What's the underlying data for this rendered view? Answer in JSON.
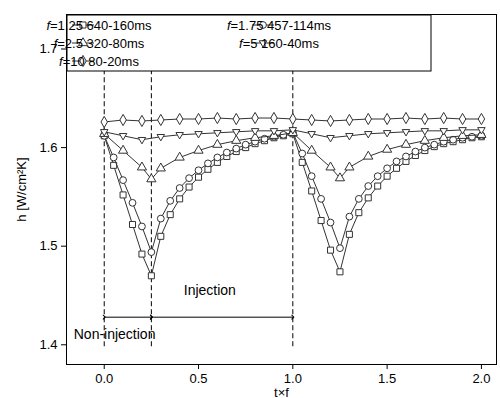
{
  "chart_data": {
    "type": "line",
    "x_label": "t×f",
    "y_label": "h [W/cm²K]",
    "xlim": [
      -0.2,
      2.08
    ],
    "ylim": [
      1.38,
      1.735
    ],
    "xticks": [
      {
        "value": 0,
        "label": "0.0"
      },
      0.5,
      {
        "value": 1,
        "label": "1.0"
      },
      1.5,
      {
        "value": 2,
        "label": "2.0"
      }
    ],
    "yticks": [
      1.4,
      1.5,
      1.6,
      1.7
    ],
    "grid": false,
    "legend": "upper left",
    "series": [
      {
        "name": "f=1.25 640-160ms",
        "color": "#333333",
        "marker": "square",
        "x": [
          0,
          0.05,
          0.1,
          0.15,
          0.2,
          0.25,
          0.3,
          0.35,
          0.4,
          0.45,
          0.5,
          0.55,
          0.6,
          0.65,
          0.7,
          0.75,
          0.8,
          0.85,
          0.9,
          0.95,
          1.0,
          1.05,
          1.1,
          1.15,
          1.2,
          1.25,
          1.3,
          1.35,
          1.4,
          1.45,
          1.5,
          1.55,
          1.6,
          1.65,
          1.7,
          1.75,
          1.8,
          1.85,
          1.9,
          1.95,
          2.0
        ],
        "values": [
          1.612,
          1.582,
          1.552,
          1.522,
          1.492,
          1.47,
          1.51,
          1.532,
          1.548,
          1.56,
          1.57,
          1.578,
          1.585,
          1.591,
          1.596,
          1.6,
          1.604,
          1.607,
          1.61,
          1.612,
          1.614,
          1.585,
          1.556,
          1.526,
          1.496,
          1.474,
          1.512,
          1.534,
          1.549,
          1.561,
          1.571,
          1.579,
          1.586,
          1.592,
          1.597,
          1.601,
          1.604,
          1.606,
          1.608,
          1.61,
          1.611
        ]
      },
      {
        "name": "f=1.75 457-114ms",
        "color": "#333333",
        "marker": "circle",
        "x": [
          0,
          0.05,
          0.1,
          0.15,
          0.2,
          0.25,
          0.3,
          0.35,
          0.4,
          0.45,
          0.5,
          0.55,
          0.6,
          0.65,
          0.7,
          0.75,
          0.8,
          0.85,
          0.9,
          0.95,
          1.0,
          1.05,
          1.1,
          1.15,
          1.2,
          1.25,
          1.3,
          1.35,
          1.4,
          1.45,
          1.5,
          1.55,
          1.6,
          1.65,
          1.7,
          1.75,
          1.8,
          1.85,
          1.9,
          1.95,
          2.0
        ],
        "values": [
          1.612,
          1.59,
          1.567,
          1.544,
          1.52,
          1.494,
          1.528,
          1.546,
          1.559,
          1.569,
          1.577,
          1.584,
          1.59,
          1.595,
          1.599,
          1.603,
          1.606,
          1.609,
          1.611,
          1.613,
          1.615,
          1.594,
          1.571,
          1.548,
          1.524,
          1.498,
          1.53,
          1.548,
          1.561,
          1.571,
          1.579,
          1.586,
          1.591,
          1.596,
          1.6,
          1.603,
          1.606,
          1.608,
          1.61,
          1.611,
          1.612
        ]
      },
      {
        "name": "f=2.5 320-80ms",
        "color": "#333333",
        "marker": "triangle",
        "x": [
          0,
          0.1,
          0.2,
          0.25,
          0.3,
          0.4,
          0.5,
          0.6,
          0.7,
          0.8,
          0.9,
          1.0,
          1.1,
          1.2,
          1.25,
          1.3,
          1.4,
          1.5,
          1.6,
          1.7,
          1.8,
          1.9,
          2.0
        ],
        "values": [
          1.614,
          1.597,
          1.58,
          1.568,
          1.579,
          1.59,
          1.597,
          1.603,
          1.607,
          1.61,
          1.612,
          1.615,
          1.597,
          1.58,
          1.569,
          1.58,
          1.591,
          1.598,
          1.603,
          1.607,
          1.61,
          1.612,
          1.613
        ]
      },
      {
        "name": "f=5 160-40ms",
        "color": "#333333",
        "marker": "triangle-down",
        "x": [
          0,
          0.1,
          0.2,
          0.3,
          0.4,
          0.5,
          0.6,
          0.7,
          0.8,
          0.9,
          1.0,
          1.1,
          1.2,
          1.3,
          1.4,
          1.5,
          1.6,
          1.7,
          1.8,
          1.9,
          2.0
        ],
        "values": [
          1.616,
          1.612,
          1.608,
          1.611,
          1.613,
          1.614,
          1.615,
          1.616,
          1.617,
          1.617,
          1.618,
          1.614,
          1.61,
          1.612,
          1.614,
          1.615,
          1.616,
          1.617,
          1.617,
          1.618,
          1.618
        ]
      },
      {
        "name": "f=10 80-20ms",
        "color": "#333333",
        "marker": "diamond",
        "x": [
          0,
          0.1,
          0.2,
          0.3,
          0.4,
          0.5,
          0.6,
          0.7,
          0.8,
          0.9,
          1.0,
          1.1,
          1.2,
          1.3,
          1.4,
          1.5,
          1.6,
          1.7,
          1.8,
          1.9,
          2.0
        ],
        "values": [
          1.626,
          1.628,
          1.627,
          1.628,
          1.629,
          1.629,
          1.63,
          1.629,
          1.63,
          1.63,
          1.629,
          1.628,
          1.627,
          1.628,
          1.629,
          1.629,
          1.63,
          1.629,
          1.63,
          1.629,
          1.629
        ]
      }
    ],
    "reference_lines": {
      "x": [
        0,
        0.25,
        1.0
      ],
      "y1": 1.398,
      "y2": 1.685,
      "line_style": "dashed"
    },
    "spans": [
      {
        "x1": 0,
        "x2": 0.25,
        "y": 1.428
      },
      {
        "x1": 0.25,
        "x2": 1.0,
        "y": 1.428
      }
    ],
    "annotations": [
      {
        "text": "Non-injection",
        "x": 0.055,
        "y": 1.41
      },
      {
        "text": "Injection",
        "x": 0.56,
        "y": 1.455
      }
    ]
  }
}
